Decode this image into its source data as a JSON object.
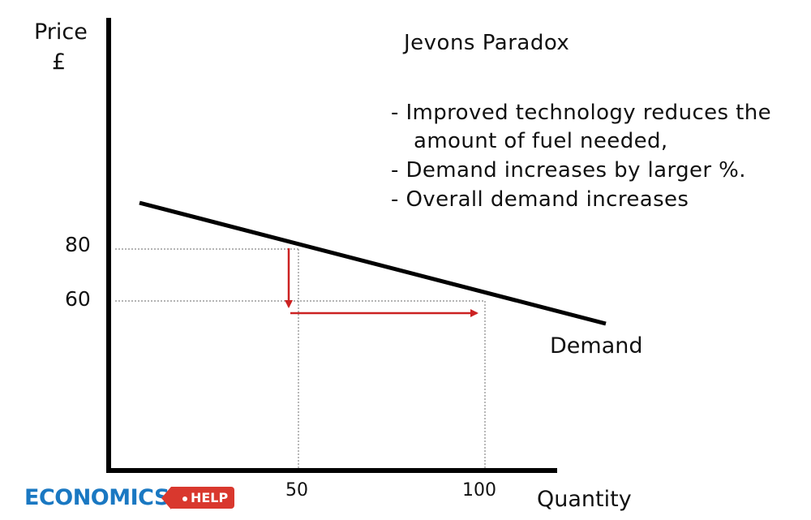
{
  "diagram": {
    "title": "Jevons Paradox",
    "notes": [
      "- Improved technology reduces the",
      "amount of fuel needed,",
      "- Demand increases by larger %.",
      "- Overall demand increases"
    ],
    "y_axis_label_line1": "Price",
    "y_axis_label_line2": "£",
    "x_axis_label": "Quantity",
    "curve_label": "Demand",
    "y_ticks": [
      "80",
      "60"
    ],
    "x_ticks": [
      "50",
      "100"
    ],
    "colors": {
      "axis": "#000000",
      "curve": "#000000",
      "arrows": "#cc2222",
      "guides": "#888888"
    }
  },
  "branding": {
    "logo_text": "ECONOMICS",
    "logo_tag": "HELP"
  }
}
